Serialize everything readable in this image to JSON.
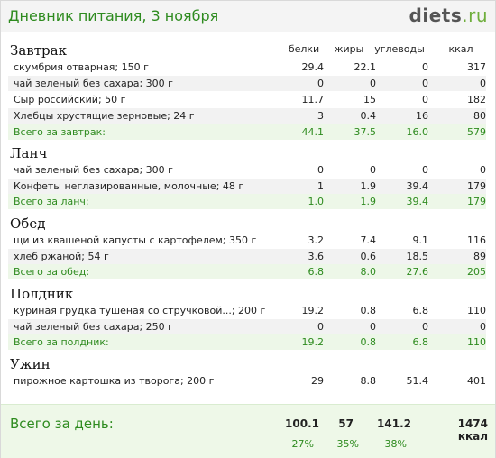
{
  "header": {
    "title": "Дневник питания, 3 ноября",
    "logo_main": "diets",
    "logo_tld": ".ru"
  },
  "columns": {
    "protein": "белки",
    "fat": "жиры",
    "carbs": "углеводы",
    "kcal": "ккал"
  },
  "meals": [
    {
      "title": "Завтрак",
      "items": [
        {
          "name": "скумбрия отварная; 150 г",
          "p": "29.4",
          "f": "22.1",
          "c": "0",
          "k": "317"
        },
        {
          "name": "чай зеленый без сахара; 300 г",
          "p": "0",
          "f": "0",
          "c": "0",
          "k": "0"
        },
        {
          "name": "Сыр российский; 50 г",
          "p": "11.7",
          "f": "15",
          "c": "0",
          "k": "182"
        },
        {
          "name": "Хлебцы хрустящие зерновые; 24 г",
          "p": "3",
          "f": "0.4",
          "c": "16",
          "k": "80"
        }
      ],
      "total": {
        "label": "Всего за завтрак:",
        "p": "44.1",
        "f": "37.5",
        "c": "16.0",
        "k": "579"
      }
    },
    {
      "title": "Ланч",
      "items": [
        {
          "name": "чай зеленый без сахара; 300 г",
          "p": "0",
          "f": "0",
          "c": "0",
          "k": "0"
        },
        {
          "name": "Конфеты неглазированные, молочные; 48 г",
          "p": "1",
          "f": "1.9",
          "c": "39.4",
          "k": "179"
        }
      ],
      "total": {
        "label": "Всего за ланч:",
        "p": "1.0",
        "f": "1.9",
        "c": "39.4",
        "k": "179"
      }
    },
    {
      "title": "Обед",
      "items": [
        {
          "name": "щи из квашеной капусты с картофелем; 350 г",
          "p": "3.2",
          "f": "7.4",
          "c": "9.1",
          "k": "116"
        },
        {
          "name": "хлеб ржаной; 54 г",
          "p": "3.6",
          "f": "0.6",
          "c": "18.5",
          "k": "89"
        }
      ],
      "total": {
        "label": "Всего за обед:",
        "p": "6.8",
        "f": "8.0",
        "c": "27.6",
        "k": "205"
      }
    },
    {
      "title": "Полдник",
      "items": [
        {
          "name": "куриная грудка тушеная со стручковой...; 200 г",
          "p": "19.2",
          "f": "0.8",
          "c": "6.8",
          "k": "110"
        },
        {
          "name": "чай зеленый без сахара; 250 г",
          "p": "0",
          "f": "0",
          "c": "0",
          "k": "0"
        }
      ],
      "total": {
        "label": "Всего за полдник:",
        "p": "19.2",
        "f": "0.8",
        "c": "6.8",
        "k": "110"
      }
    },
    {
      "title": "Ужин",
      "items": [
        {
          "name": "пирожное картошка из творога; 200 г",
          "p": "29",
          "f": "8.8",
          "c": "51.4",
          "k": "401"
        }
      ]
    }
  ],
  "day": {
    "label": "Всего за день:",
    "p": "100.1",
    "f": "57",
    "c": "141.2",
    "k": "1474 ккал",
    "pct_p": "27%",
    "pct_f": "35%",
    "pct_c": "38%"
  }
}
